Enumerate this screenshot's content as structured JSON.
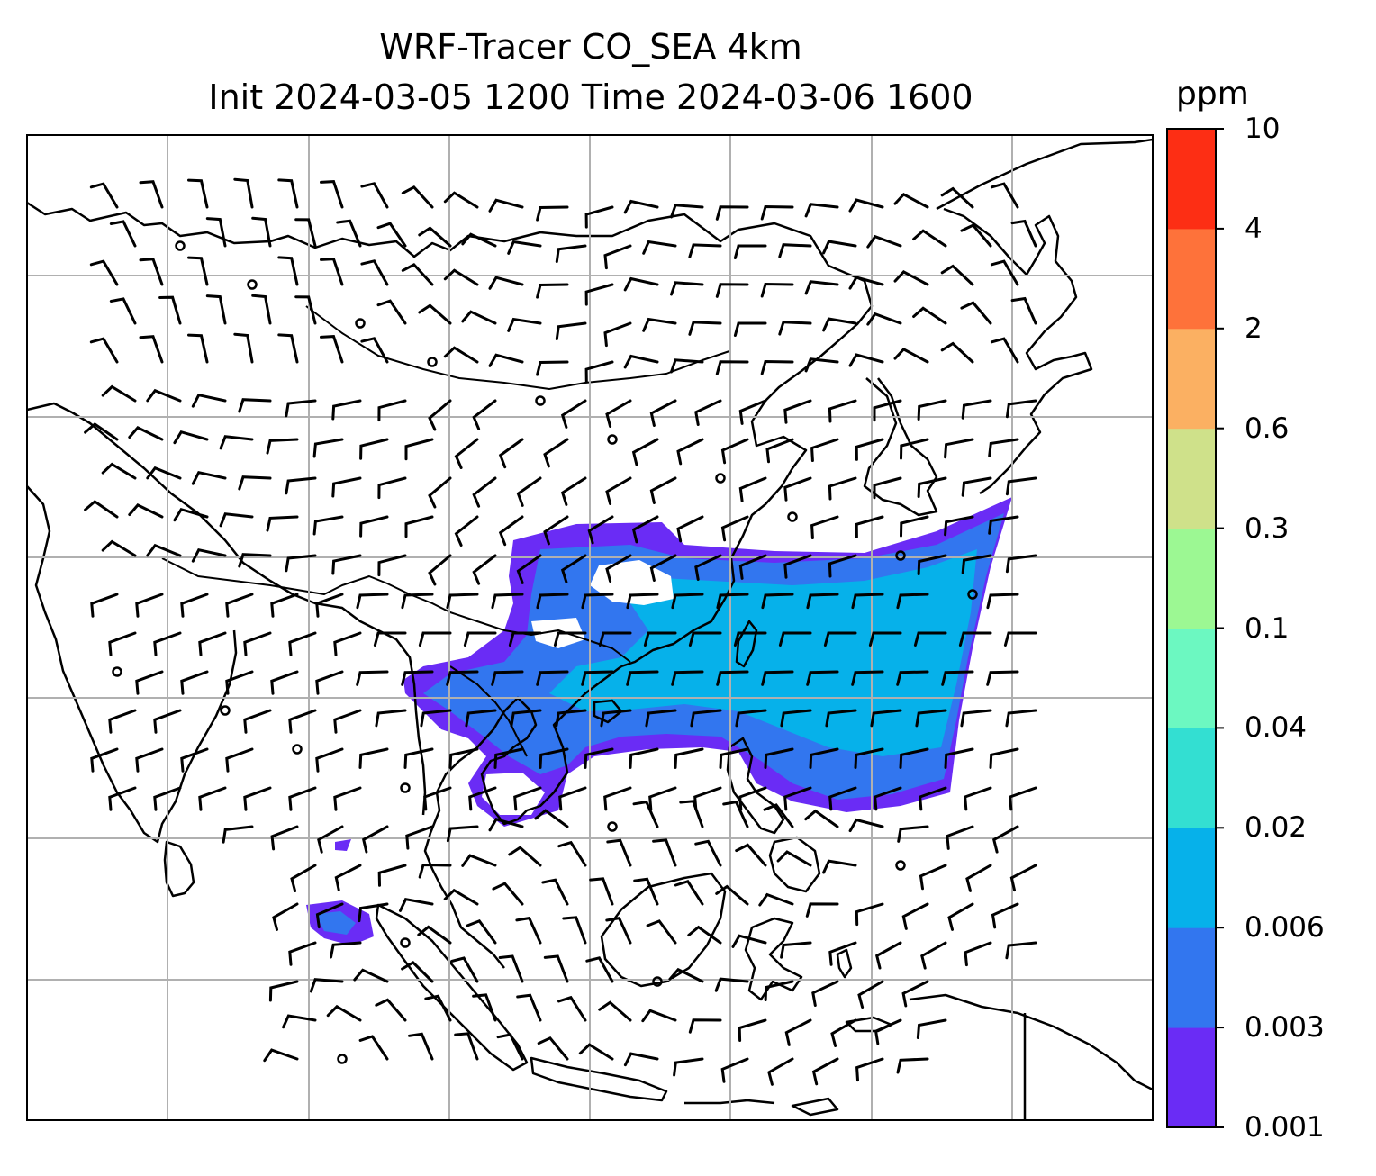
{
  "title": {
    "line1": "WRF-Tracer CO_SEA 4km",
    "line2": "Init 2024-03-05 1200 Time 2024-03-06 1600"
  },
  "colorbar": {
    "unit": "ppm",
    "tick_labels": [
      "0.001",
      "0.003",
      "0.006",
      "0.02",
      "0.04",
      "0.1",
      "0.3",
      "0.6",
      "2",
      "4",
      "10"
    ],
    "colors": [
      "#6a2cf5",
      "#3276ef",
      "#06b1ea",
      "#33dfd2",
      "#6cf8c1",
      "#9cf893",
      "#cfe18a",
      "#fbb062",
      "#fe723a",
      "#fd2e14"
    ]
  },
  "map": {
    "grid": true,
    "coastline_color": "#000000",
    "gridline_color": "#b0b0b0",
    "plume_colors": [
      "#6a2cf5",
      "#3276ef",
      "#06b1ea"
    ],
    "wind_barbs": true
  }
}
